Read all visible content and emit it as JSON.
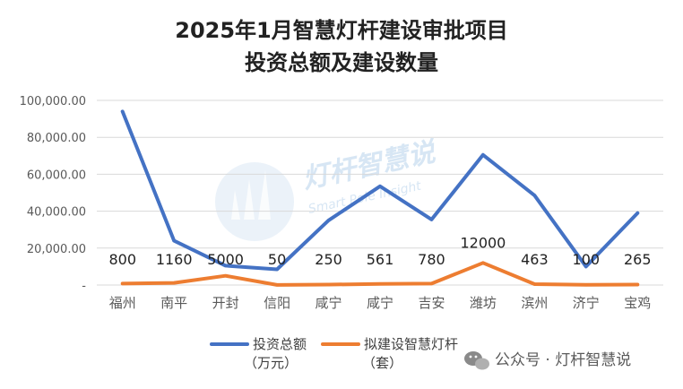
{
  "chart_data": {
    "type": "line",
    "title_line1": "2025年1月智慧灯杆建设审批项目",
    "title_line2": "投资总额及建设数量",
    "categories": [
      "福州",
      "南平",
      "开封",
      "信阳",
      "咸宁",
      "咸宁",
      "吉安",
      "潍坊",
      "滨州",
      "济宁",
      "宝鸡"
    ],
    "yticks": [
      "100,000.00",
      "80,000.00",
      "60,000.00",
      "40,000.00",
      "20,000.00",
      "-"
    ],
    "ylim": [
      0,
      100000
    ],
    "grid": true,
    "series": [
      {
        "name_line1": "投资总额",
        "name_line2": "（万元）",
        "color": "#4472C4",
        "values": [
          94000,
          24000,
          10500,
          8500,
          35000,
          53500,
          35500,
          70500,
          48500,
          10000,
          39000
        ]
      },
      {
        "name_line1": "拟建设智慧灯杆",
        "name_line2": "（套）",
        "color": "#ED7D31",
        "values": [
          800,
          1160,
          5000,
          50,
          250,
          561,
          780,
          12000,
          463,
          100,
          265
        ],
        "labels": [
          "800",
          "1160",
          "5000",
          "50",
          "250",
          "561",
          "780",
          "12000",
          "463",
          "100",
          "265"
        ]
      }
    ],
    "legend_position": "bottom"
  },
  "watermark": {
    "text": "灯杆智慧说",
    "subtext": "Smart Pole Insight"
  },
  "footer": {
    "icon": "wechat-icon",
    "text": "公众号 · 灯杆智慧说"
  }
}
